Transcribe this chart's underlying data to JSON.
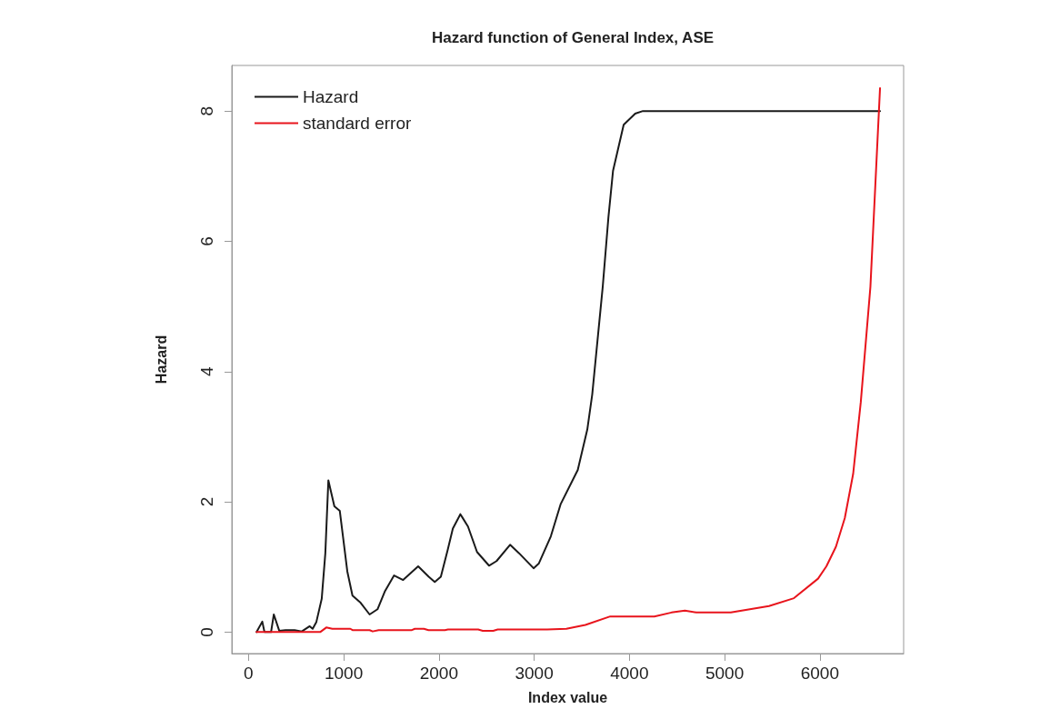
{
  "chart_data": {
    "type": "line",
    "title": "Hazard function of General Index, ASE",
    "xlabel": "Index value",
    "ylabel": "Hazard",
    "xlim": [
      -175,
      6880
    ],
    "xticks": [
      0,
      1000,
      2000,
      3000,
      4000,
      5000,
      6000
    ],
    "ylim": [
      -0.33,
      8.7
    ],
    "yticks": [
      0,
      2,
      4,
      6,
      8
    ],
    "grid": false,
    "legend": "top left",
    "marker": "none",
    "line_style": "solid",
    "series": [
      {
        "name": "Hazard",
        "color": "#1a1a1a",
        "x": [
          85,
          145,
          168,
          237,
          266,
          323,
          389,
          484,
          560,
          643,
          674,
          712,
          769,
          807,
          839,
          902,
          959,
          1038,
          1092,
          1177,
          1272,
          1355,
          1434,
          1529,
          1624,
          1782,
          1893,
          1956,
          2020,
          2092,
          2146,
          2225,
          2305,
          2400,
          2526,
          2605,
          2747,
          2842,
          2994,
          3048,
          3175,
          3277,
          3458,
          3558,
          3610,
          3720,
          3780,
          3828,
          3940,
          4061,
          4142,
          6632
        ],
        "values": [
          0.0,
          0.16,
          0.0,
          0.0,
          0.27,
          0.02,
          0.03,
          0.03,
          0.01,
          0.09,
          0.05,
          0.15,
          0.51,
          1.21,
          2.33,
          1.93,
          1.86,
          0.93,
          0.56,
          0.45,
          0.27,
          0.35,
          0.63,
          0.87,
          0.8,
          1.01,
          0.85,
          0.77,
          0.85,
          1.26,
          1.59,
          1.81,
          1.62,
          1.23,
          1.02,
          1.09,
          1.34,
          1.21,
          0.98,
          1.05,
          1.47,
          1.96,
          2.49,
          3.11,
          3.65,
          5.3,
          6.37,
          7.08,
          7.79,
          7.96,
          8.0,
          8.0
        ]
      },
      {
        "name": "standard error",
        "color": "#e8141c",
        "x": [
          85,
          753,
          817,
          880,
          1070,
          1092,
          1272,
          1304,
          1367,
          1716,
          1747,
          1842,
          1890,
          2063,
          2095,
          2412,
          2460,
          2570,
          2617,
          3137,
          3338,
          3538,
          3799,
          4262,
          4442,
          4583,
          4703,
          5065,
          5466,
          5728,
          5981,
          6069,
          6169,
          6262,
          6350,
          6430,
          6531,
          6632
        ],
        "values": [
          0.0,
          0.0,
          0.07,
          0.05,
          0.05,
          0.03,
          0.03,
          0.01,
          0.03,
          0.03,
          0.05,
          0.05,
          0.03,
          0.03,
          0.04,
          0.04,
          0.02,
          0.02,
          0.04,
          0.04,
          0.05,
          0.11,
          0.24,
          0.24,
          0.3,
          0.33,
          0.3,
          0.3,
          0.4,
          0.52,
          0.82,
          1.01,
          1.31,
          1.75,
          2.43,
          3.53,
          5.3,
          8.35
        ]
      }
    ]
  }
}
